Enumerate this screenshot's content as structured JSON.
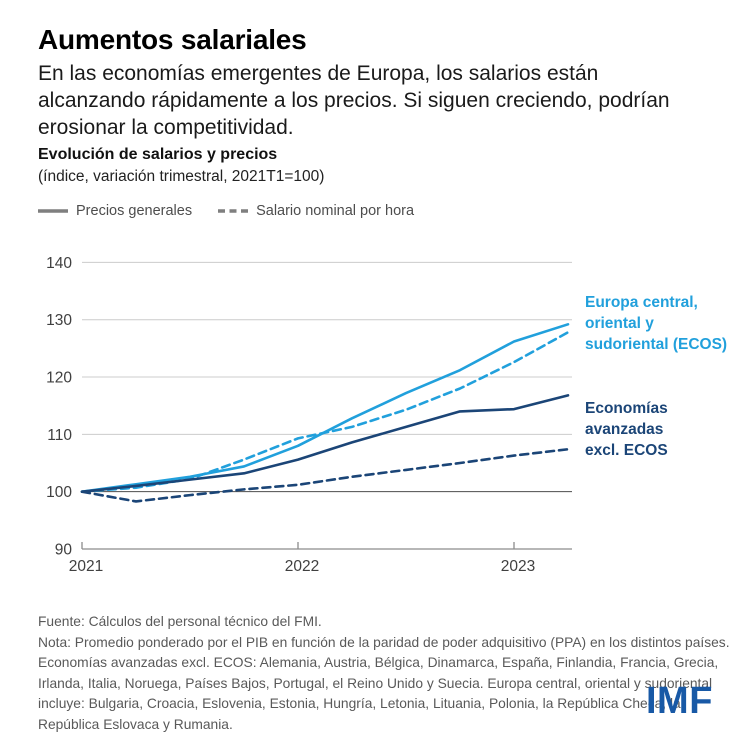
{
  "page": {
    "title": "Aumentos salariales",
    "subtitle": "En las economías emergentes de Europa, los salarios están alcanzando rápidamente a los precios. Si siguen creciendo, podrían erosionar la competitividad."
  },
  "chart_header": {
    "title": "Evolución de salarios y precios",
    "subtitle": "(índice, variación trimestral, 2021T1=100)"
  },
  "legend": [
    {
      "label": "Precios generales",
      "line_style": "solid",
      "swatch_color": "#7f7f7f"
    },
    {
      "label": "Salario nominal por hora",
      "line_style": "dashed",
      "swatch_color": "#7f7f7f"
    }
  ],
  "annotations": [
    {
      "lines": [
        "Europa central,",
        "oriental y",
        "sudoriental (ECOS)"
      ],
      "color": "#21A0DC"
    },
    {
      "lines": [
        "Economías",
        "avanzadas",
        "excl. ECOS"
      ],
      "color": "#1B4577"
    }
  ],
  "chart_data": {
    "type": "line",
    "title": "Evolución de salarios y precios",
    "subtitle": "(índice, variación trimestral, 2021T1=100)",
    "xlabel": "",
    "ylabel": "",
    "ylim": [
      90,
      143
    ],
    "grid": true,
    "baseline_value": 100,
    "categories": [
      "2021T1",
      "2021T2",
      "2021T3",
      "2021T4",
      "2022T1",
      "2022T2",
      "2022T3",
      "2022T4",
      "2023T1",
      "2023T2"
    ],
    "y_ticks": [
      90,
      100,
      110,
      120,
      130,
      140
    ],
    "x_ticks": [
      {
        "index": 0,
        "label": "2021"
      },
      {
        "index": 4,
        "label": "2022"
      },
      {
        "index": 8,
        "label": "2023"
      }
    ],
    "series": [
      {
        "name": "ECOS — Precios generales",
        "group": "Europa central, oriental y sudoriental (ECOS)",
        "measure": "Precios generales",
        "style": "solid",
        "color": "#21A0DC",
        "values": [
          100,
          101.3,
          102.6,
          104.4,
          108.0,
          112.8,
          117.2,
          121.2,
          126.2,
          129.2
        ]
      },
      {
        "name": "ECOS — Salario nominal por hora",
        "group": "Europa central, oriental y sudoriental (ECOS)",
        "measure": "Salario nominal por hora",
        "style": "dashed",
        "color": "#21A0DC",
        "values": [
          100,
          100.7,
          102.2,
          105.6,
          109.3,
          111.3,
          114.3,
          118.0,
          122.6,
          127.8
        ]
      },
      {
        "name": "Economías avanzadas excl. ECOS — Precios generales",
        "group": "Economías avanzadas excl. ECOS",
        "measure": "Precios generales",
        "style": "solid",
        "color": "#1B4577",
        "values": [
          100,
          101.0,
          102.1,
          103.2,
          105.6,
          108.6,
          111.3,
          114.0,
          114.4,
          116.8
        ]
      },
      {
        "name": "Economías avanzadas excl. ECOS — Salario nominal por hora",
        "group": "Economías avanzadas excl. ECOS",
        "measure": "Salario nominal por hora",
        "style": "dashed",
        "color": "#1B4577",
        "values": [
          100,
          98.3,
          99.4,
          100.4,
          101.2,
          102.6,
          103.8,
          105.0,
          106.3,
          107.4
        ]
      }
    ]
  },
  "footer": {
    "source": "Fuente: Cálculos del personal técnico del FMI.",
    "note": "Nota: Promedio ponderado por el PIB en función de la paridad de poder adquisitivo (PPA) en los distintos países. Economías avanzadas excl. ECOS: Alemania, Austria, Bélgica, Dinamarca, España, Finlandia, Francia, Grecia, Irlanda, Italia, Noruega, Países Bajos, Portugal, el Reino Unido y Suecia. Europa central, oriental y sudoriental incluye: Bulgaria, Croacia, Eslovenia, Estonia, Hungría, Letonia, Lituania, Polonia, la República Checa, la República Eslovaca y Rumania.",
    "logo_text": "IMF"
  },
  "colors": {
    "accent_light_blue": "#21A0DC",
    "accent_dark_navy": "#1B4577",
    "imf_logo_blue": "#1859A6",
    "legend_gray": "#7f7f7f",
    "gridline_gray": "#cccccc",
    "baseline_dark": "#4d4d4d",
    "axis_gray": "#8c8c8c",
    "footer_gray": "#595959"
  }
}
